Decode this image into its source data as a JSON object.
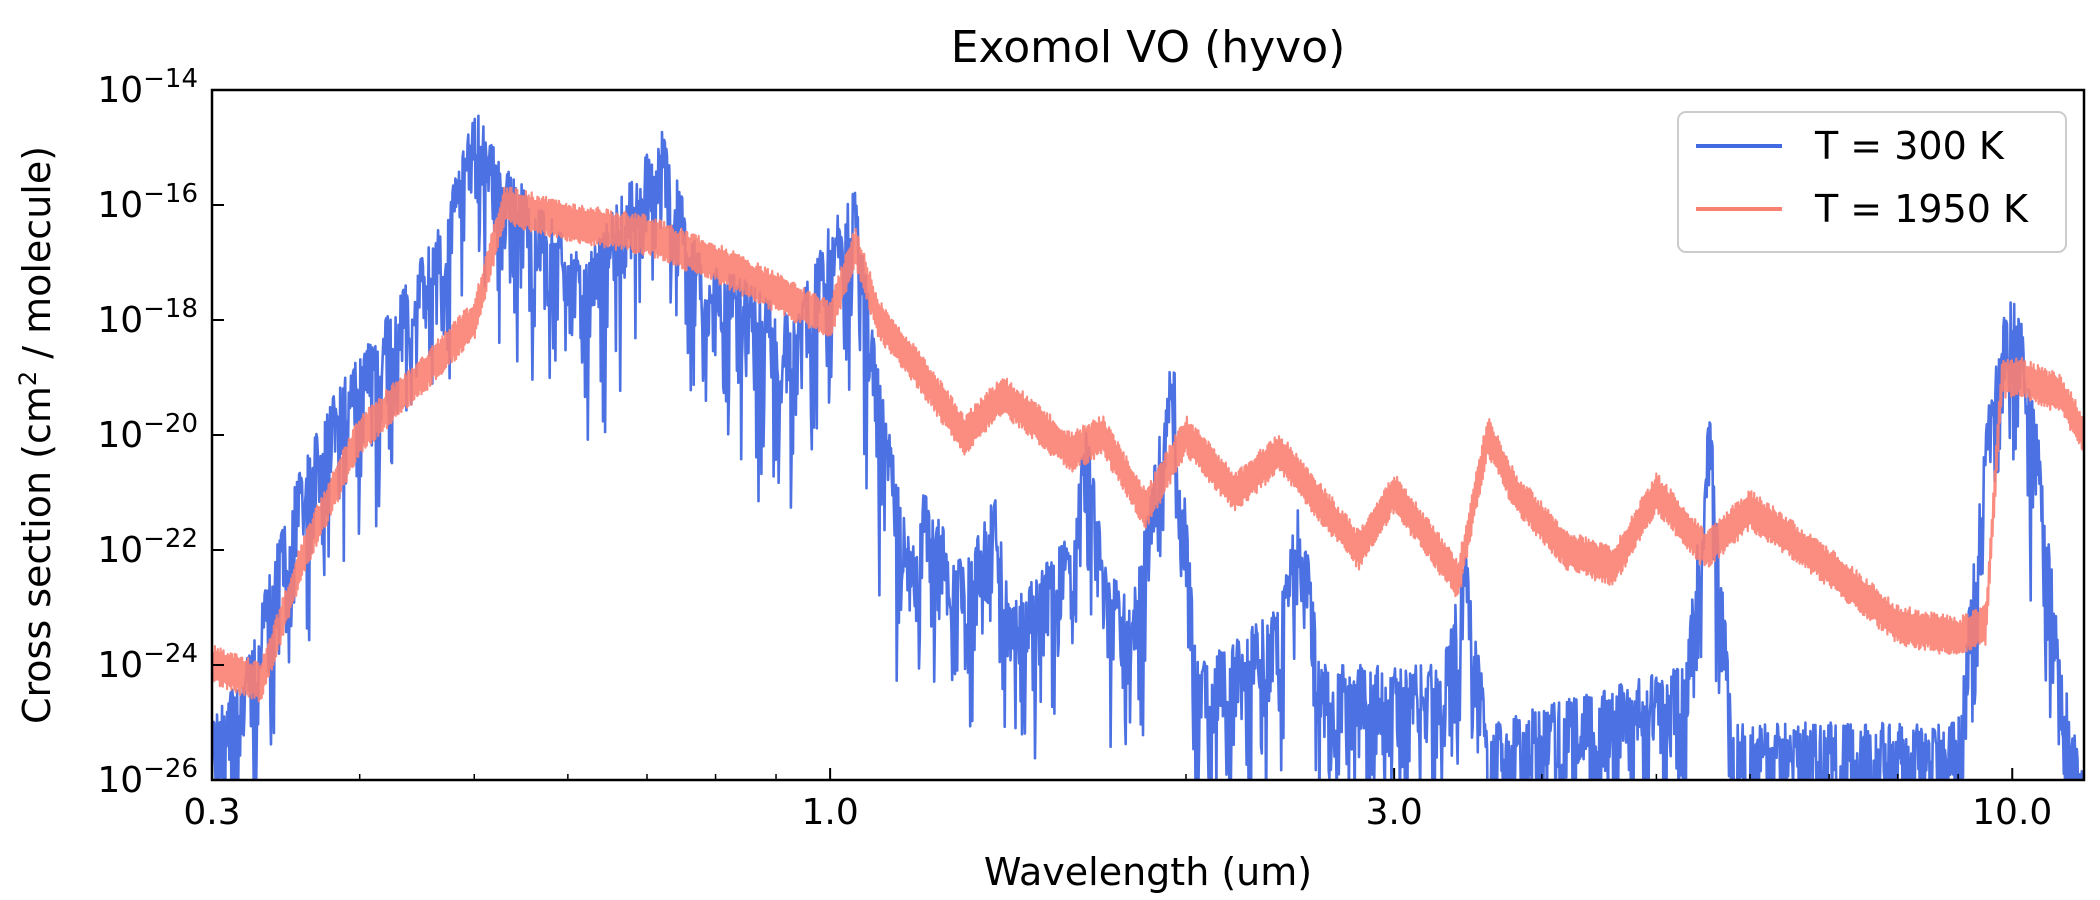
{
  "chart_data": {
    "type": "line",
    "title": "Exomol VO (hyvo)",
    "xlabel": "Wavelength (um)",
    "ylabel_prefix": "Cross section (cm",
    "ylabel_sup": "2",
    "ylabel_suffix": " / molecule)",
    "x_scale": "log",
    "y_scale": "log",
    "xlim": [
      0.3,
      11.5
    ],
    "ylim": [
      1e-26,
      1e-14
    ],
    "x_ticks": [
      {
        "value": 0.3,
        "label": "0.3"
      },
      {
        "value": 1.0,
        "label": "1.0"
      },
      {
        "value": 3.0,
        "label": "3.0"
      },
      {
        "value": 10.0,
        "label": "10.0"
      }
    ],
    "y_ticks": [
      {
        "value": 1e-26,
        "base": "10",
        "exp": "−26"
      },
      {
        "value": 1e-24,
        "base": "10",
        "exp": "−24"
      },
      {
        "value": 1e-22,
        "base": "10",
        "exp": "−22"
      },
      {
        "value": 1e-20,
        "base": "10",
        "exp": "−20"
      },
      {
        "value": 1e-18,
        "base": "10",
        "exp": "−18"
      },
      {
        "value": 1e-16,
        "base": "10",
        "exp": "−16"
      },
      {
        "value": 1e-14,
        "base": "10",
        "exp": "−14"
      }
    ],
    "grid": false,
    "legend_position": "top-right",
    "series": [
      {
        "name": "T = 300 K",
        "color": "#4169e1",
        "style": "dense-spectrum",
        "envelope": [
          [
            0.3,
            1e-25
          ],
          [
            0.32,
            1e-24
          ],
          [
            0.35,
            1e-21
          ],
          [
            0.38,
            5e-20
          ],
          [
            0.42,
            1e-18
          ],
          [
            0.47,
            5e-17
          ],
          [
            0.5,
            5e-15
          ],
          [
            0.53,
            5e-16
          ],
          [
            0.57,
            1e-16
          ],
          [
            0.62,
            1e-17
          ],
          [
            0.66,
            1e-16
          ],
          [
            0.72,
            2e-15
          ],
          [
            0.78,
            1e-17
          ],
          [
            0.85,
            5e-18
          ],
          [
            0.93,
            1e-18
          ],
          [
            1.0,
            5e-17
          ],
          [
            1.05,
            2e-16
          ],
          [
            1.1,
            1e-19
          ],
          [
            1.17,
            1e-22
          ],
          [
            1.2,
            1e-21
          ],
          [
            1.3,
            5e-23
          ],
          [
            1.38,
            1e-21
          ],
          [
            1.42,
            1e-23
          ],
          [
            1.6,
            2e-22
          ],
          [
            1.65,
            2e-20
          ],
          [
            1.7,
            1e-22
          ],
          [
            1.8,
            1e-23
          ],
          [
            1.95,
            3e-19
          ],
          [
            2.05,
            1e-24
          ],
          [
            2.4,
            1e-23
          ],
          [
            2.5,
            1e-21
          ],
          [
            2.6,
            1e-24
          ],
          [
            2.8,
            1e-24
          ],
          [
            3.3,
            1e-24
          ],
          [
            3.45,
            1e-22
          ],
          [
            3.6,
            1e-25
          ],
          [
            5.3,
            1e-24
          ],
          [
            5.55,
            3e-20
          ],
          [
            5.8,
            1e-25
          ],
          [
            9.0,
            1e-25
          ],
          [
            9.6,
            1e-19
          ],
          [
            10.0,
            5e-18
          ],
          [
            10.4,
            1e-19
          ],
          [
            11.0,
            1e-24
          ],
          [
            11.5,
            1e-26
          ]
        ]
      },
      {
        "name": "T = 1950 K",
        "color": "#fa8072",
        "style": "band",
        "envelope": [
          [
            0.3,
            1e-24
          ],
          [
            0.33,
            5e-25
          ],
          [
            0.36,
            1e-22
          ],
          [
            0.4,
            1e-20
          ],
          [
            0.45,
            1e-19
          ],
          [
            0.5,
            1e-18
          ],
          [
            0.53,
            1e-16
          ],
          [
            0.6,
            5e-17
          ],
          [
            0.7,
            3e-17
          ],
          [
            0.8,
            1e-17
          ],
          [
            0.9,
            3e-18
          ],
          [
            1.0,
            1e-18
          ],
          [
            1.05,
            2e-17
          ],
          [
            1.1,
            1e-18
          ],
          [
            1.2,
            1e-19
          ],
          [
            1.3,
            1e-20
          ],
          [
            1.4,
            5e-20
          ],
          [
            1.6,
            5e-21
          ],
          [
            1.7,
            1e-20
          ],
          [
            1.85,
            5e-22
          ],
          [
            2.0,
            1e-20
          ],
          [
            2.2,
            1e-21
          ],
          [
            2.4,
            5e-21
          ],
          [
            2.8,
            1e-22
          ],
          [
            3.0,
            1e-21
          ],
          [
            3.4,
            3e-23
          ],
          [
            3.6,
            1e-20
          ],
          [
            3.8,
            1e-21
          ],
          [
            4.2,
            1e-22
          ],
          [
            4.6,
            5e-23
          ],
          [
            5.0,
            1e-21
          ],
          [
            5.5,
            1e-22
          ],
          [
            6.0,
            5e-22
          ],
          [
            7.0,
            5e-23
          ],
          [
            8.0,
            5e-24
          ],
          [
            9.0,
            3e-24
          ],
          [
            9.5,
            5e-24
          ],
          [
            9.8,
            1e-19
          ],
          [
            10.2,
            1e-19
          ],
          [
            11.0,
            5e-20
          ],
          [
            11.5,
            1e-20
          ]
        ]
      }
    ]
  }
}
